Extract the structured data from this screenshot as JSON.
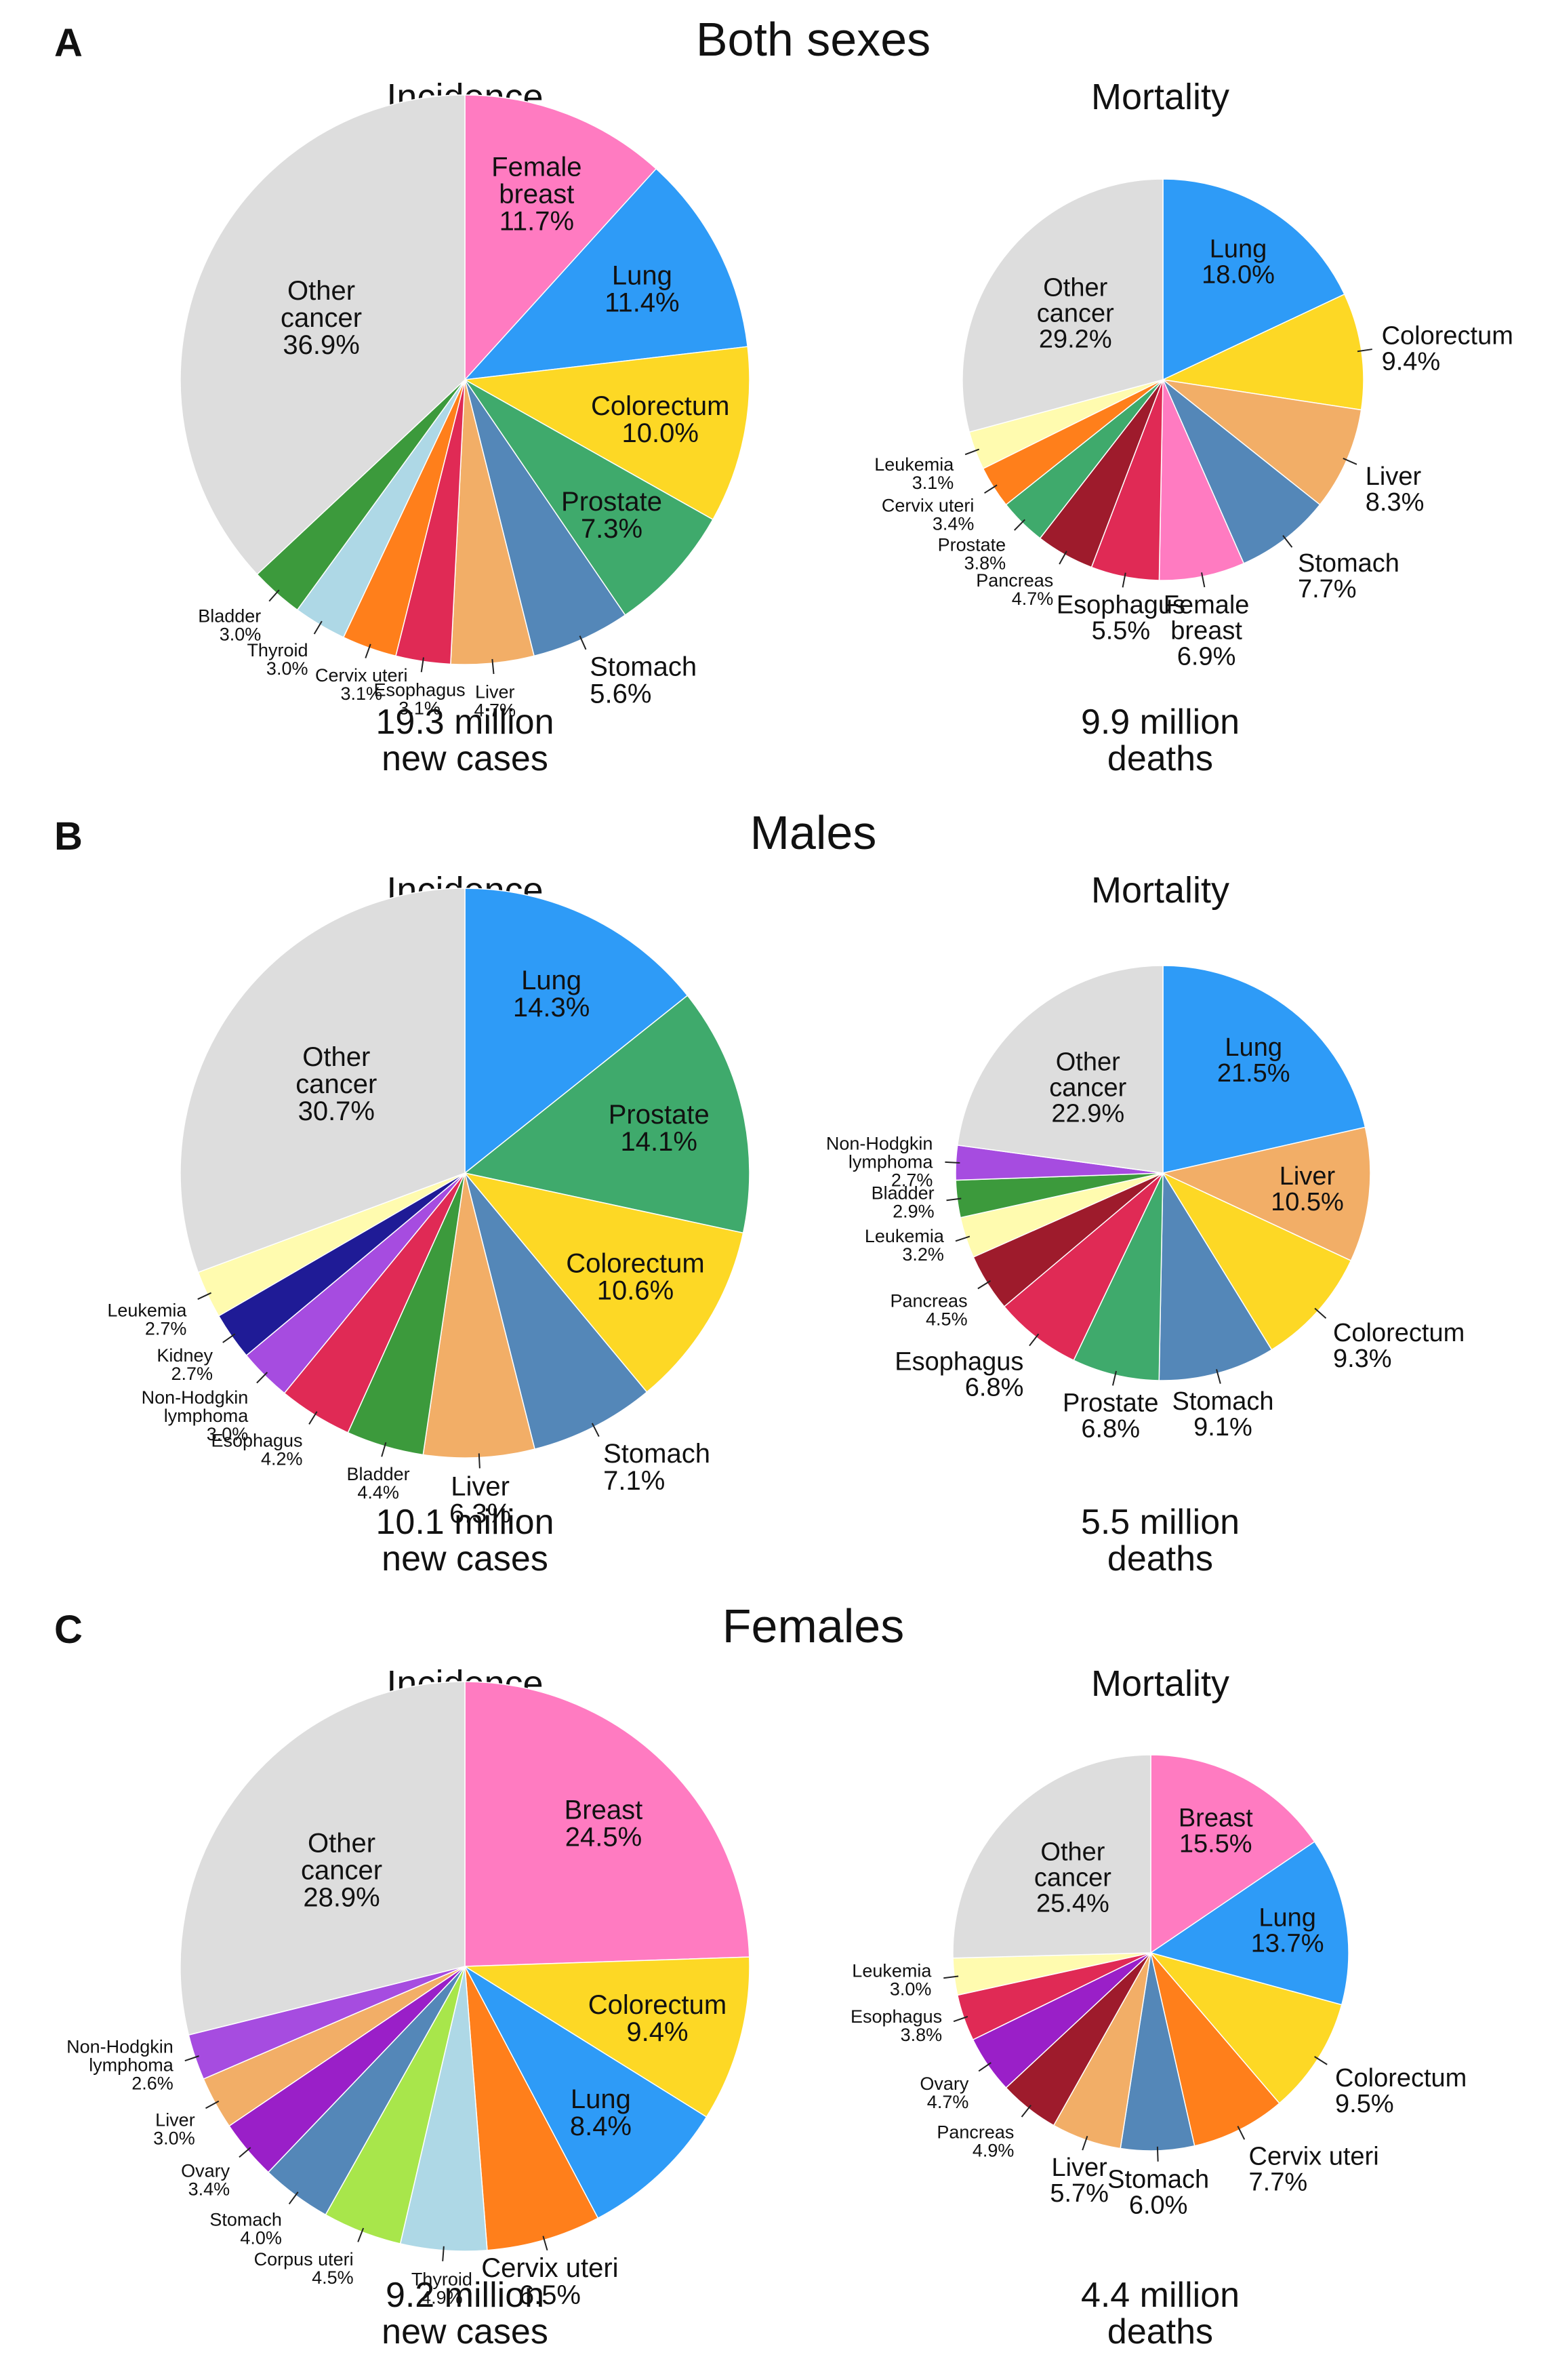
{
  "chart_data": [
    {
      "id": "A",
      "title": "Both sexes",
      "panels": [
        {
          "type": "pie",
          "title": "Incidence",
          "total_line1": "19.3 million",
          "total_line2": "new cases",
          "slices": [
            {
              "line1": "Female",
              "line2": "breast",
              "value_label": "11.7%",
              "value": 11.7,
              "color": "#FF7BC1"
            },
            {
              "line1": "Lung",
              "value_label": "11.4%",
              "value": 11.4,
              "color": "#2E9BF7"
            },
            {
              "line1": "Colorectum",
              "value_label": "10.0%",
              "value": 10.0,
              "color": "#FDD825"
            },
            {
              "line1": "Prostate",
              "value_label": "7.3%",
              "value": 7.3,
              "color": "#3FAA6C"
            },
            {
              "line1": "Stomach",
              "value_label": "5.6%",
              "value": 5.6,
              "color": "#5487B8"
            },
            {
              "line1": "Liver",
              "value_label": "4.7%",
              "value": 4.7,
              "color": "#F2AE67"
            },
            {
              "line1": "Esophagus",
              "value_label": "3.1%",
              "value": 3.1,
              "color": "#E02A55"
            },
            {
              "line1": "Cervix uteri",
              "value_label": "3.1%",
              "value": 3.1,
              "color": "#FF7F1B"
            },
            {
              "line1": "Thyroid",
              "value_label": "3.0%",
              "value": 3.0,
              "color": "#AED8E6"
            },
            {
              "line1": "Bladder",
              "value_label": "3.0%",
              "value": 3.0,
              "color": "#3C9A3C"
            },
            {
              "line1": "Other",
              "line2": "cancer",
              "value_label": "36.9%",
              "value": 36.9,
              "color": "#DDDDDD"
            }
          ]
        },
        {
          "type": "pie",
          "title": "Mortality",
          "total_line1": "9.9 million",
          "total_line2": "deaths",
          "slices": [
            {
              "line1": "Lung",
              "value_label": "18.0%",
              "value": 18.0,
              "color": "#2E9BF7"
            },
            {
              "line1": "Colorectum",
              "value_label": "9.4%",
              "value": 9.4,
              "color": "#FDD825"
            },
            {
              "line1": "Liver",
              "value_label": "8.3%",
              "value": 8.3,
              "color": "#F2AE67"
            },
            {
              "line1": "Stomach",
              "value_label": "7.7%",
              "value": 7.7,
              "color": "#5487B8"
            },
            {
              "line1": "Female",
              "line2": "breast",
              "value_label": "6.9%",
              "value": 6.9,
              "color": "#FF7BC1"
            },
            {
              "line1": "Esophagus",
              "value_label": "5.5%",
              "value": 5.5,
              "color": "#E02A55"
            },
            {
              "line1": "Pancreas",
              "value_label": "4.7%",
              "value": 4.7,
              "color": "#9E1B2C"
            },
            {
              "line1": "Prostate",
              "value_label": "3.8%",
              "value": 3.8,
              "color": "#3FAA6C"
            },
            {
              "line1": "Cervix uteri",
              "value_label": "3.4%",
              "value": 3.4,
              "color": "#FF7F1B"
            },
            {
              "line1": "Leukemia",
              "value_label": "3.1%",
              "value": 3.1,
              "color": "#FFFBAF"
            },
            {
              "line1": "Other",
              "line2": "cancer",
              "value_label": "29.2%",
              "value": 29.2,
              "color": "#DDDDDD"
            }
          ]
        }
      ]
    },
    {
      "id": "B",
      "title": "Males",
      "panels": [
        {
          "type": "pie",
          "title": "Incidence",
          "total_line1": "10.1 million",
          "total_line2": "new cases",
          "slices": [
            {
              "line1": "Lung",
              "value_label": "14.3%",
              "value": 14.3,
              "color": "#2E9BF7"
            },
            {
              "line1": "Prostate",
              "value_label": "14.1%",
              "value": 14.1,
              "color": "#3FAA6C"
            },
            {
              "line1": "Colorectum",
              "value_label": "10.6%",
              "value": 10.6,
              "color": "#FDD825"
            },
            {
              "line1": "Stomach",
              "value_label": "7.1%",
              "value": 7.1,
              "color": "#5487B8"
            },
            {
              "line1": "Liver",
              "value_label": "6.3%",
              "value": 6.3,
              "color": "#F2AE67"
            },
            {
              "line1": "Bladder",
              "value_label": "4.4%",
              "value": 4.4,
              "color": "#3C9A3C"
            },
            {
              "line1": "Esophagus",
              "value_label": "4.2%",
              "value": 4.2,
              "color": "#E02A55"
            },
            {
              "line1": "Non-Hodgkin",
              "line2": "lymphoma",
              "value_label": "3.0%",
              "value": 3.0,
              "color": "#A64CE0"
            },
            {
              "line1": "Kidney",
              "value_label": "2.7%",
              "value": 2.7,
              "color": "#1F1B96"
            },
            {
              "line1": "Leukemia",
              "value_label": "2.7%",
              "value": 2.7,
              "color": "#FFFBAF"
            },
            {
              "line1": "Other",
              "line2": "cancer",
              "value_label": "30.7%",
              "value": 30.7,
              "color": "#DDDDDD"
            }
          ]
        },
        {
          "type": "pie",
          "title": "Mortality",
          "total_line1": "5.5 million",
          "total_line2": "deaths",
          "slices": [
            {
              "line1": "Lung",
              "value_label": "21.5%",
              "value": 21.5,
              "color": "#2E9BF7"
            },
            {
              "line1": "Liver",
              "value_label": "10.5%",
              "value": 10.5,
              "color": "#F2AE67"
            },
            {
              "line1": "Colorectum",
              "value_label": "9.3%",
              "value": 9.3,
              "color": "#FDD825"
            },
            {
              "line1": "Stomach",
              "value_label": "9.1%",
              "value": 9.1,
              "color": "#5487B8"
            },
            {
              "line1": "Prostate",
              "value_label": "6.8%",
              "value": 6.8,
              "color": "#3FAA6C"
            },
            {
              "line1": "Esophagus",
              "value_label": "6.8%",
              "value": 6.8,
              "color": "#E02A55"
            },
            {
              "line1": "Pancreas",
              "value_label": "4.5%",
              "value": 4.5,
              "color": "#9E1B2C"
            },
            {
              "line1": "Leukemia",
              "value_label": "3.2%",
              "value": 3.2,
              "color": "#FFFBAF"
            },
            {
              "line1": "Bladder",
              "value_label": "2.9%",
              "value": 2.9,
              "color": "#3C9A3C"
            },
            {
              "line1": "Non-Hodgkin",
              "line2": "lymphoma",
              "value_label": "2.7%",
              "value": 2.7,
              "color": "#A64CE0"
            },
            {
              "line1": "Other",
              "line2": "cancer",
              "value_label": "22.9%",
              "value": 22.9,
              "color": "#DDDDDD"
            }
          ]
        }
      ]
    },
    {
      "id": "C",
      "title": "Females",
      "panels": [
        {
          "type": "pie",
          "title": "Incidence",
          "total_line1": "9.2 million",
          "total_line2": "new cases",
          "slices": [
            {
              "line1": "Breast",
              "value_label": "24.5%",
              "value": 24.5,
              "color": "#FF7BC1"
            },
            {
              "line1": "Colorectum",
              "value_label": "9.4%",
              "value": 9.4,
              "color": "#FDD825"
            },
            {
              "line1": "Lung",
              "value_label": "8.4%",
              "value": 8.4,
              "color": "#2E9BF7"
            },
            {
              "line1": "Cervix uteri",
              "value_label": "6.5%",
              "value": 6.5,
              "color": "#FF7F1B"
            },
            {
              "line1": "Thyroid",
              "value_label": "4.9%",
              "value": 4.9,
              "color": "#AED8E6"
            },
            {
              "line1": "Corpus uteri",
              "value_label": "4.5%",
              "value": 4.5,
              "color": "#A8E64B"
            },
            {
              "line1": "Stomach",
              "value_label": "4.0%",
              "value": 4.0,
              "color": "#5487B8"
            },
            {
              "line1": "Ovary",
              "value_label": "3.4%",
              "value": 3.4,
              "color": "#9A1FC8"
            },
            {
              "line1": "Liver",
              "value_label": "3.0%",
              "value": 3.0,
              "color": "#F2AE67"
            },
            {
              "line1": "Non-Hodgkin",
              "line2": "lymphoma",
              "value_label": "2.6%",
              "value": 2.6,
              "color": "#A64CE0"
            },
            {
              "line1": "Other",
              "line2": "cancer",
              "value_label": "28.9%",
              "value": 28.9,
              "color": "#DDDDDD"
            }
          ]
        },
        {
          "type": "pie",
          "title": "Mortality",
          "total_line1": "4.4 million",
          "total_line2": "deaths",
          "slices": [
            {
              "line1": "Breast",
              "value_label": "15.5%",
              "value": 15.5,
              "color": "#FF7BC1"
            },
            {
              "line1": "Lung",
              "value_label": "13.7%",
              "value": 13.7,
              "color": "#2E9BF7"
            },
            {
              "line1": "Colorectum",
              "value_label": "9.5%",
              "value": 9.5,
              "color": "#FDD825"
            },
            {
              "line1": "Cervix uteri",
              "value_label": "7.7%",
              "value": 7.7,
              "color": "#FF7F1B"
            },
            {
              "line1": "Stomach",
              "value_label": "6.0%",
              "value": 6.0,
              "color": "#5487B8"
            },
            {
              "line1": "Liver",
              "value_label": "5.7%",
              "value": 5.7,
              "color": "#F2AE67"
            },
            {
              "line1": "Pancreas",
              "value_label": "4.9%",
              "value": 4.9,
              "color": "#9E1B2C"
            },
            {
              "line1": "Ovary",
              "value_label": "4.7%",
              "value": 4.7,
              "color": "#9A1FC8"
            },
            {
              "line1": "Esophagus",
              "value_label": "3.8%",
              "value": 3.8,
              "color": "#E02A55"
            },
            {
              "line1": "Leukemia",
              "value_label": "3.0%",
              "value": 3.0,
              "color": "#FFFBAF"
            },
            {
              "line1": "Other",
              "line2": "cancer",
              "value_label": "25.4%",
              "value": 25.4,
              "color": "#DDDDDD"
            }
          ]
        }
      ]
    }
  ]
}
